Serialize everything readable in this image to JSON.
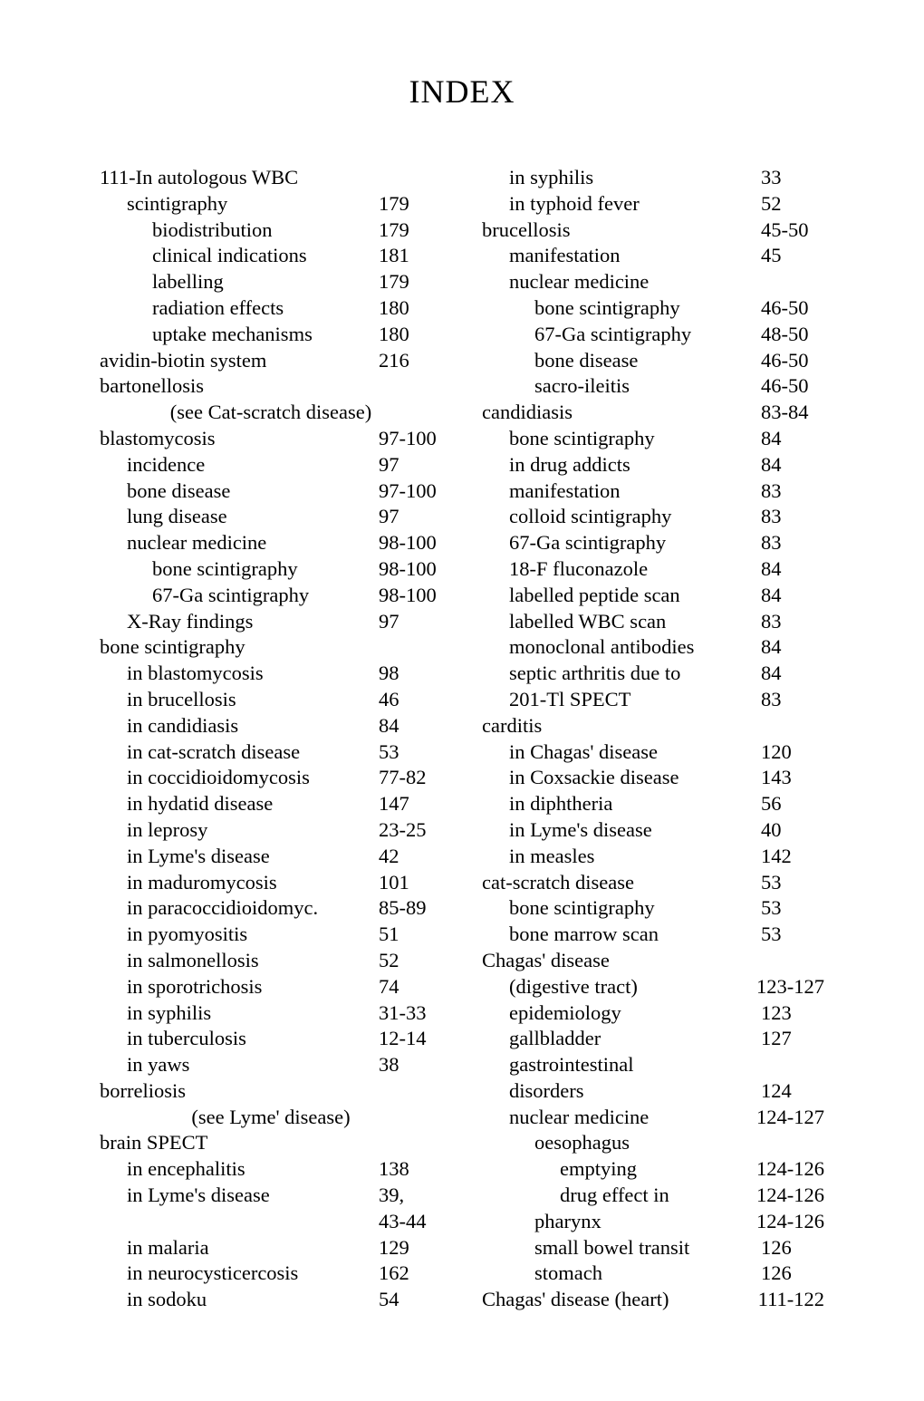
{
  "title": "INDEX",
  "left": [
    {
      "i": 0,
      "t": "111-In autologous WBC",
      "p": ""
    },
    {
      "i": 1,
      "t": "scintigraphy",
      "p": "179"
    },
    {
      "i": 2,
      "t": "biodistribution",
      "p": "179"
    },
    {
      "i": 2,
      "t": "clinical indications",
      "p": "181"
    },
    {
      "i": 2,
      "t": "labelling",
      "p": "179"
    },
    {
      "i": 2,
      "t": "radiation effects",
      "p": "180"
    },
    {
      "i": 2,
      "t": "uptake mechanisms",
      "p": "180"
    },
    {
      "i": 0,
      "t": "avidin-biotin system",
      "p": "216"
    },
    {
      "i": 0,
      "t": "bartonellosis",
      "p": ""
    },
    {
      "i": -1,
      "t": "(see Cat-scratch disease)",
      "p": ""
    },
    {
      "i": 0,
      "t": "blastomycosis",
      "p": "97-100"
    },
    {
      "i": 1,
      "t": "incidence",
      "p": "97"
    },
    {
      "i": 1,
      "t": "bone disease",
      "p": "97-100"
    },
    {
      "i": 1,
      "t": "lung disease",
      "p": "97"
    },
    {
      "i": 1,
      "t": "nuclear medicine",
      "p": "98-100"
    },
    {
      "i": 2,
      "t": "bone scintigraphy",
      "p": "98-100"
    },
    {
      "i": 2,
      "t": "67-Ga scintigraphy",
      "p": "98-100"
    },
    {
      "i": 1,
      "t": "X-Ray findings",
      "p": "97"
    },
    {
      "i": 0,
      "t": "bone scintigraphy",
      "p": ""
    },
    {
      "i": 1,
      "t": "in blastomycosis",
      "p": "98"
    },
    {
      "i": 1,
      "t": "in brucellosis",
      "p": "46"
    },
    {
      "i": 1,
      "t": "in candidiasis",
      "p": "84"
    },
    {
      "i": 1,
      "t": "in cat-scratch disease",
      "p": "53"
    },
    {
      "i": 1,
      "t": "in coccidioidomycosis",
      "p": "77-82"
    },
    {
      "i": 1,
      "t": "in hydatid disease",
      "p": "147"
    },
    {
      "i": 1,
      "t": "in leprosy",
      "p": "23-25"
    },
    {
      "i": 1,
      "t": "in Lyme's disease",
      "p": "42"
    },
    {
      "i": 1,
      "t": "in maduromycosis",
      "p": "101"
    },
    {
      "i": 1,
      "t": "in paracoccidioidomyc.",
      "p": "85-89"
    },
    {
      "i": 1,
      "t": "in pyomyositis",
      "p": "51"
    },
    {
      "i": 1,
      "t": "in salmonellosis",
      "p": "52"
    },
    {
      "i": 1,
      "t": "in sporotrichosis",
      "p": "74"
    },
    {
      "i": 1,
      "t": "in syphilis",
      "p": "31-33"
    },
    {
      "i": 1,
      "t": "in tuberculosis",
      "p": "12-14"
    },
    {
      "i": 1,
      "t": "in yaws",
      "p": "38"
    },
    {
      "i": 0,
      "t": "borreliosis",
      "p": ""
    },
    {
      "i": -1,
      "t": "(see Lyme' disease)",
      "p": ""
    },
    {
      "i": 0,
      "t": "brain SPECT",
      "p": ""
    },
    {
      "i": 1,
      "t": "in encephalitis",
      "p": "138"
    },
    {
      "i": 1,
      "t": "in Lyme's disease",
      "p": "39,"
    },
    {
      "i": 1,
      "t": "",
      "p": "43-44"
    },
    {
      "i": 1,
      "t": "in malaria",
      "p": "129"
    },
    {
      "i": 1,
      "t": "in neurocysticercosis",
      "p": "162"
    },
    {
      "i": 1,
      "t": "in sodoku",
      "p": "54"
    }
  ],
  "right": [
    {
      "i": 1,
      "t": "in syphilis",
      "p": "33"
    },
    {
      "i": 1,
      "t": "in typhoid fever",
      "p": "52"
    },
    {
      "i": 0,
      "t": "brucellosis",
      "p": "45-50"
    },
    {
      "i": 1,
      "t": "manifestation",
      "p": "45"
    },
    {
      "i": 1,
      "t": "nuclear medicine",
      "p": ""
    },
    {
      "i": 2,
      "t": "bone scintigraphy",
      "p": "46-50"
    },
    {
      "i": 2,
      "t": "67-Ga scintigraphy",
      "p": "48-50"
    },
    {
      "i": 2,
      "t": "bone disease",
      "p": "46-50"
    },
    {
      "i": 2,
      "t": "sacro-ileitis",
      "p": "46-50"
    },
    {
      "i": 0,
      "t": "candidiasis",
      "p": "83-84"
    },
    {
      "i": 1,
      "t": "bone scintigraphy",
      "p": "84"
    },
    {
      "i": 1,
      "t": "in drug addicts",
      "p": "84"
    },
    {
      "i": 1,
      "t": "manifestation",
      "p": "83"
    },
    {
      "i": 1,
      "t": "colloid scintigraphy",
      "p": "83"
    },
    {
      "i": 1,
      "t": "67-Ga scintigraphy",
      "p": "83"
    },
    {
      "i": 1,
      "t": "18-F fluconazole",
      "p": "84"
    },
    {
      "i": 1,
      "t": "labelled peptide scan",
      "p": "84"
    },
    {
      "i": 1,
      "t": "labelled WBC scan",
      "p": "83"
    },
    {
      "i": 1,
      "t": "monoclonal antibodies",
      "p": "84"
    },
    {
      "i": 1,
      "t": "septic arthritis due to",
      "p": "84"
    },
    {
      "i": 1,
      "t": "201-Tl SPECT",
      "p": "83"
    },
    {
      "i": 0,
      "t": "carditis",
      "p": ""
    },
    {
      "i": 1,
      "t": "in Chagas' disease",
      "p": "120"
    },
    {
      "i": 1,
      "t": "in Coxsackie disease",
      "p": "143"
    },
    {
      "i": 1,
      "t": "in diphtheria",
      "p": "56"
    },
    {
      "i": 1,
      "t": "in Lyme's disease",
      "p": "40"
    },
    {
      "i": 1,
      "t": "in measles",
      "p": "142"
    },
    {
      "i": 0,
      "t": "cat-scratch disease",
      "p": "53"
    },
    {
      "i": 1,
      "t": "bone scintigraphy",
      "p": "53"
    },
    {
      "i": 1,
      "t": "bone marrow scan",
      "p": "53"
    },
    {
      "i": 0,
      "t": "Chagas' disease",
      "p": ""
    },
    {
      "i": 1,
      "t": "(digestive tract)",
      "p": "123-127"
    },
    {
      "i": 1,
      "t": "epidemiology",
      "p": "123"
    },
    {
      "i": 1,
      "t": "gallbladder",
      "p": "127"
    },
    {
      "i": 1,
      "t": "gastrointestinal",
      "p": ""
    },
    {
      "i": 1,
      "t": "disorders",
      "p": "124"
    },
    {
      "i": 1,
      "t": "nuclear medicine",
      "p": "124-127"
    },
    {
      "i": 2,
      "t": "oesophagus",
      "p": ""
    },
    {
      "i": 3,
      "t": "emptying",
      "p": "124-126"
    },
    {
      "i": 3,
      "t": "drug effect in",
      "p": "124-126"
    },
    {
      "i": 2,
      "t": "pharynx",
      "p": "124-126"
    },
    {
      "i": 2,
      "t": "small bowel transit",
      "p": "126"
    },
    {
      "i": 2,
      "t": "stomach",
      "p": "126"
    },
    {
      "i": 0,
      "t": "Chagas' disease (heart)",
      "p": "111-122"
    }
  ]
}
